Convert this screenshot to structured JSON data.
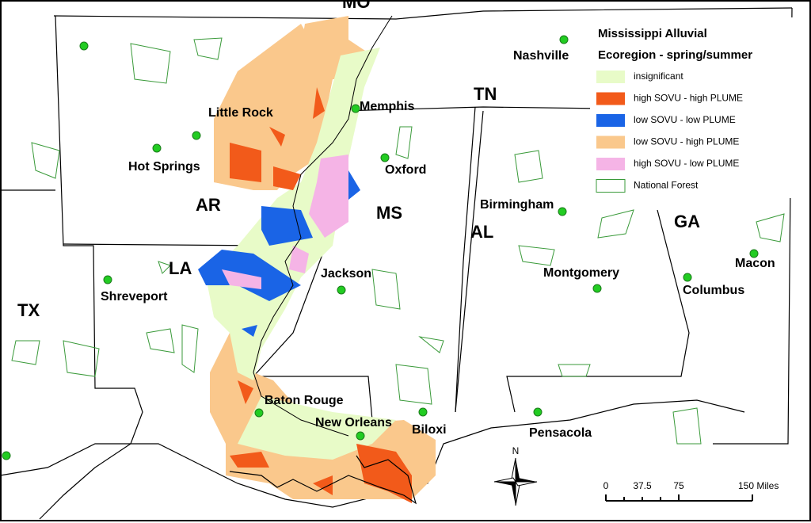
{
  "states": [
    "MO",
    "TN",
    "AR",
    "MS",
    "AL",
    "GA",
    "LA",
    "TX"
  ],
  "cities": [
    "Nashville",
    "Memphis",
    "Little Rock",
    "Hot Springs",
    "Oxford",
    "Birmingham",
    "Jackson",
    "Montgomery",
    "Columbus",
    "Macon",
    "Shreveport",
    "Baton Rouge",
    "New Orleans",
    "Biloxi",
    "Pensacola"
  ],
  "legend": {
    "title": [
      "Mississippi Alluvial",
      "Ecoregion - spring/summer"
    ],
    "items": [
      {
        "label": "insignificant",
        "color": "#e8fbc8"
      },
      {
        "label": "high SOVU - high PLUME",
        "color": "#f25a1a"
      },
      {
        "label": "low SOVU - low PLUME",
        "color": "#1a64e6"
      },
      {
        "label": "low SOVU - high PLUME",
        "color": "#fac88c"
      },
      {
        "label": "high SOVU - low PLUME",
        "color": "#f5b4e6"
      },
      {
        "label": "National Forest",
        "color": "#ffffff",
        "outline": "#3a9a3a"
      }
    ]
  },
  "north": "N",
  "scale": [
    "0",
    "37.5",
    "75",
    "150 Miles"
  ]
}
